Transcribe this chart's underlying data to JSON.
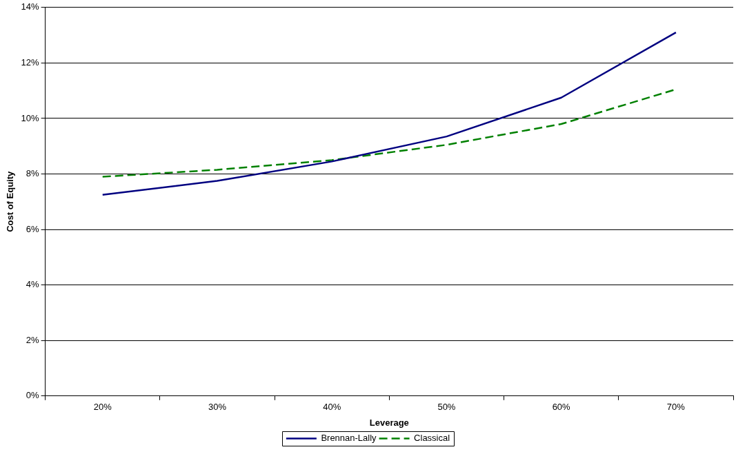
{
  "chart_data": {
    "type": "line",
    "xlabel": "Leverage",
    "ylabel": "Cost of Equity",
    "categories": [
      "20%",
      "30%",
      "40%",
      "50%",
      "60%",
      "70%"
    ],
    "series": [
      {
        "name": "Brennan-Lally",
        "color": "#000080",
        "line_style": "solid",
        "values": [
          7.25,
          7.75,
          8.45,
          9.35,
          10.75,
          13.1
        ]
      },
      {
        "name": "Classical",
        "color": "#008000",
        "line_style": "dashed",
        "values": [
          7.9,
          8.15,
          8.5,
          9.05,
          9.8,
          11.05
        ]
      }
    ],
    "ylim": [
      0,
      14
    ],
    "yticks": [
      {
        "value": 0,
        "label": "0%"
      },
      {
        "value": 2,
        "label": "2%"
      },
      {
        "value": 4,
        "label": "4%"
      },
      {
        "value": 6,
        "label": "6%"
      },
      {
        "value": 8,
        "label": "8%"
      },
      {
        "value": 10,
        "label": "10%"
      },
      {
        "value": 12,
        "label": "12%"
      },
      {
        "value": 14,
        "label": "14%"
      }
    ],
    "grid": "y",
    "legend": "bottom",
    "marker": "none"
  }
}
